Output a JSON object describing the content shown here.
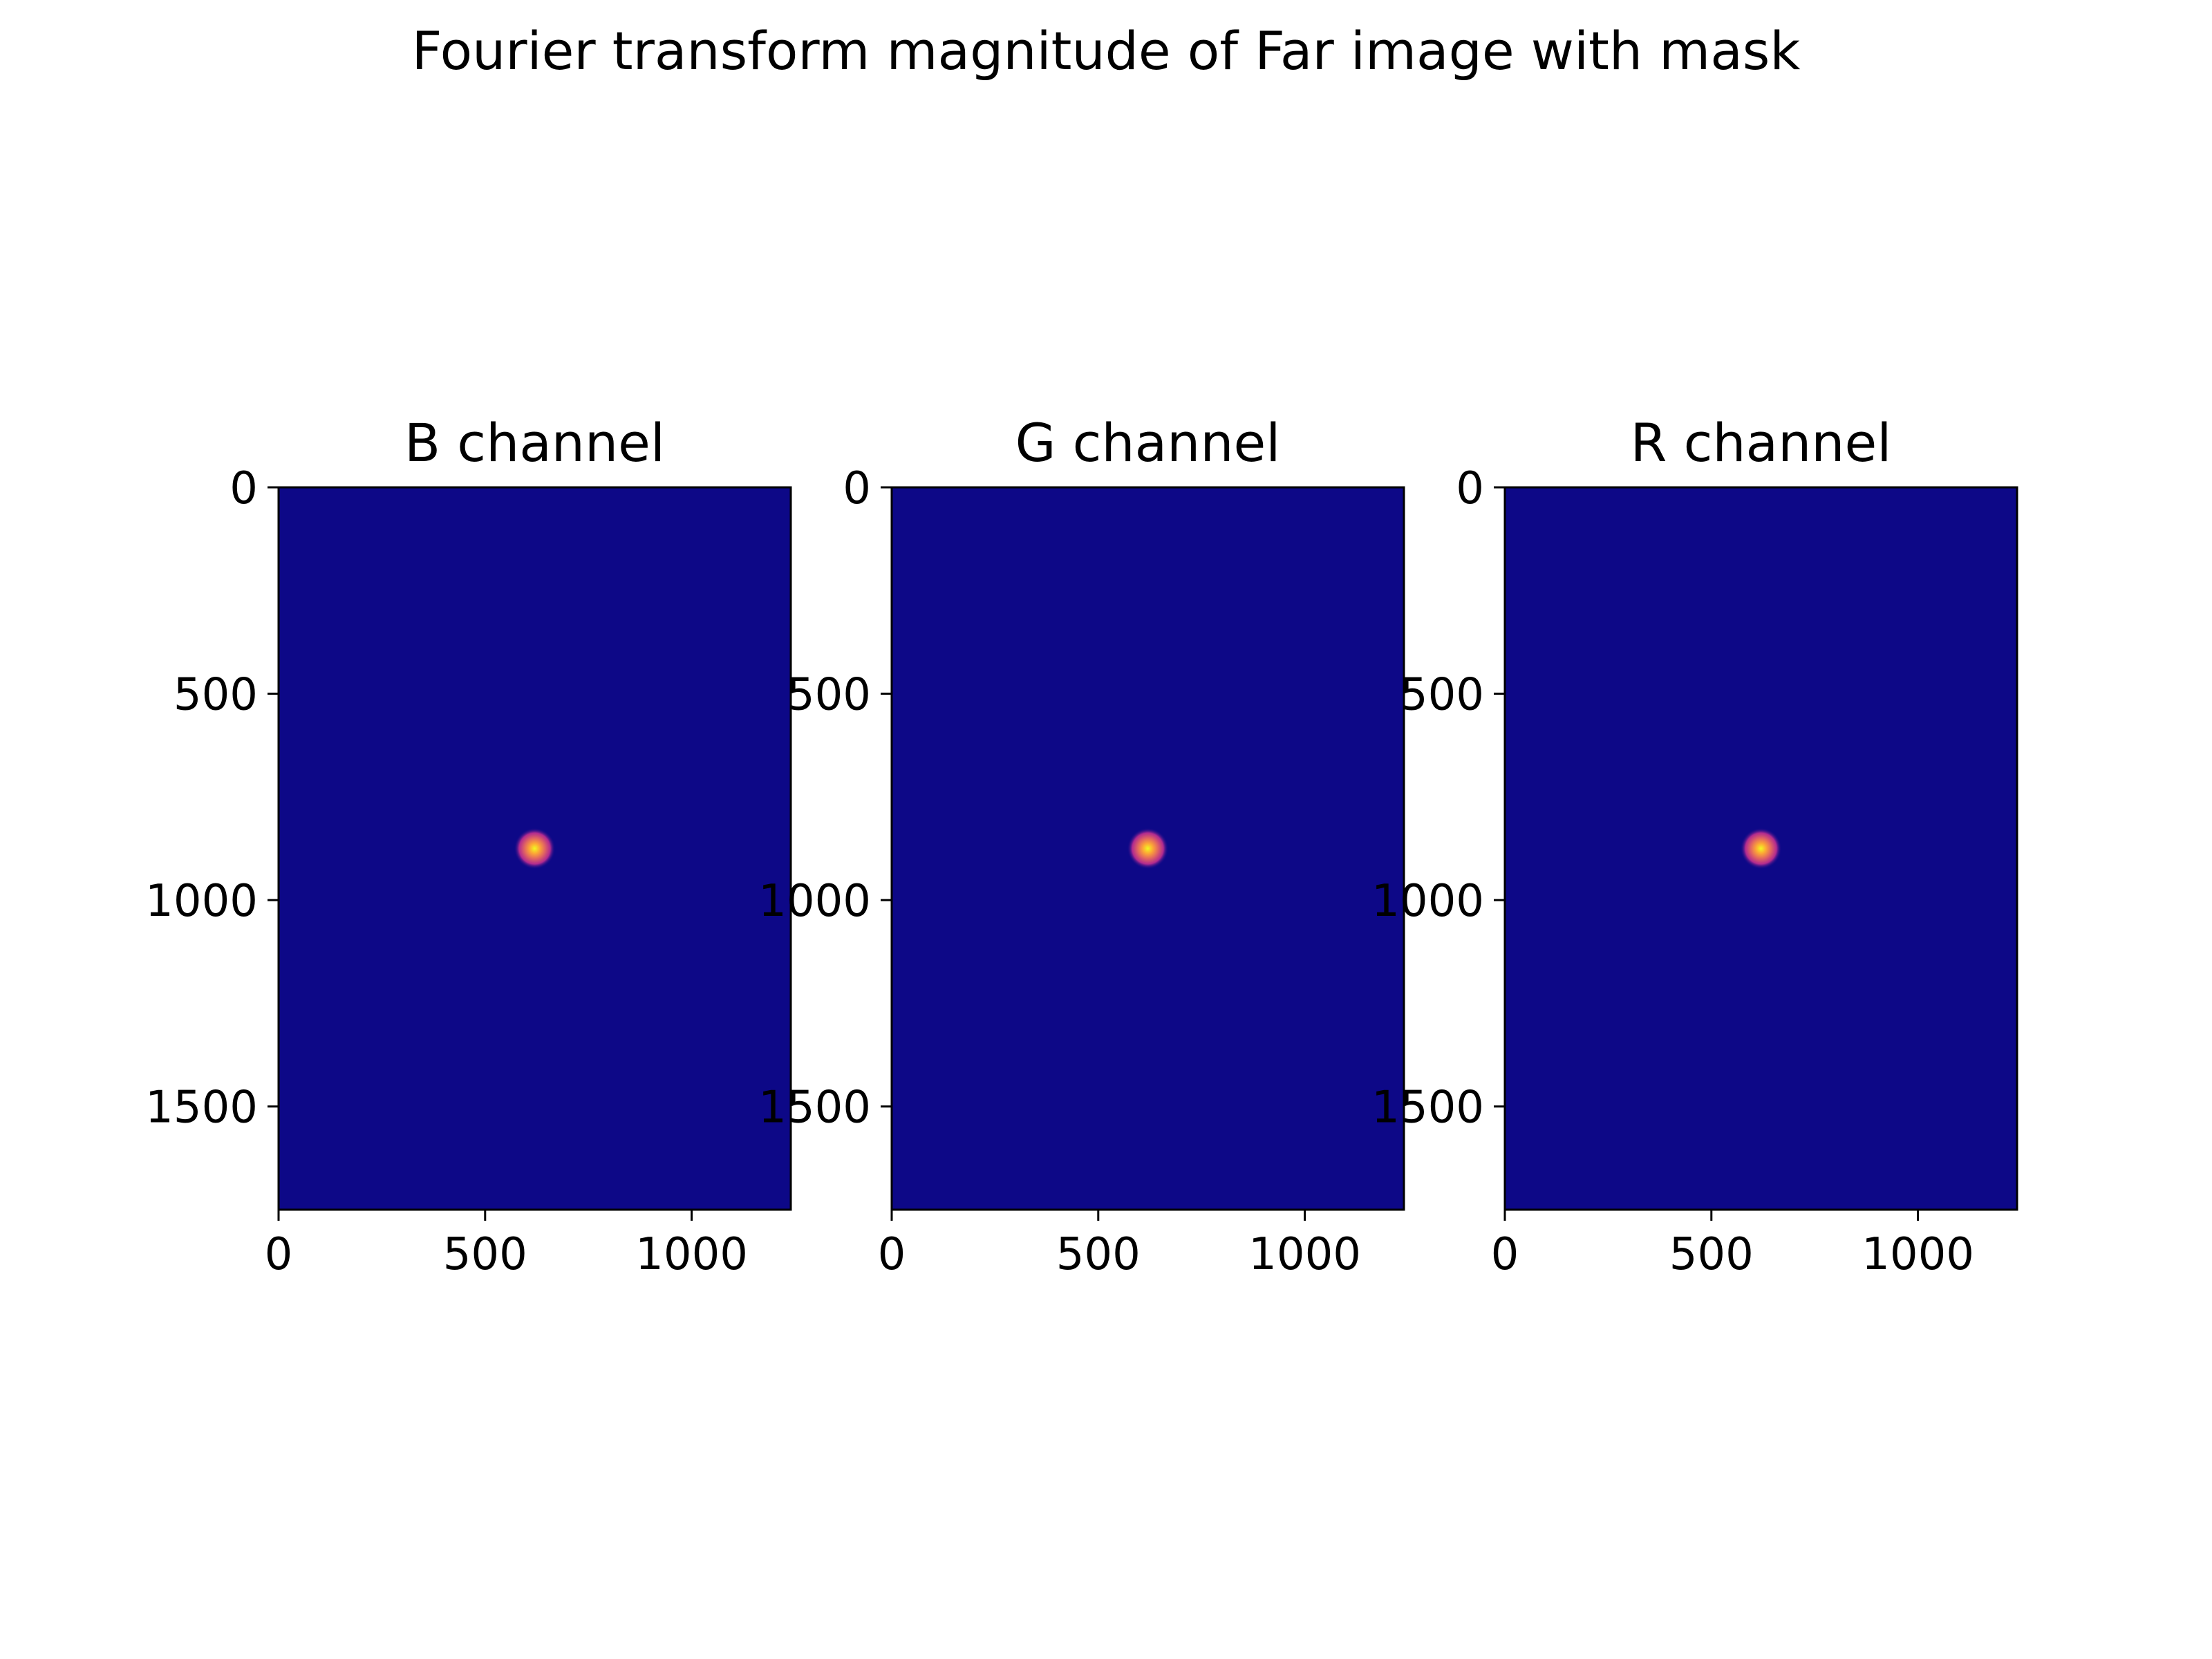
{
  "figure": {
    "suptitle": "Fourier transform magnitude of Far image with mask"
  },
  "chart_data": [
    {
      "type": "heatmap",
      "title": "B channel",
      "xlim": [
        0,
        1240
      ],
      "ylim": [
        1750,
        0
      ],
      "xticks": [
        0,
        500,
        1000
      ],
      "yticks": [
        0,
        500,
        1000,
        1500
      ],
      "colormap": "plasma",
      "background_color": "#0d0887",
      "bright_spot": {
        "x": 620,
        "y": 875,
        "value": "max"
      }
    },
    {
      "type": "heatmap",
      "title": "G channel",
      "xlim": [
        0,
        1240
      ],
      "ylim": [
        1750,
        0
      ],
      "xticks": [
        0,
        500,
        1000
      ],
      "yticks": [
        0,
        500,
        1000,
        1500
      ],
      "colormap": "plasma",
      "background_color": "#0d0887",
      "bright_spot": {
        "x": 620,
        "y": 875,
        "value": "max"
      }
    },
    {
      "type": "heatmap",
      "title": "R channel",
      "xlim": [
        0,
        1240
      ],
      "ylim": [
        1750,
        0
      ],
      "xticks": [
        0,
        500,
        1000
      ],
      "yticks": [
        0,
        500,
        1000,
        1500
      ],
      "colormap": "plasma",
      "background_color": "#0d0887",
      "bright_spot": {
        "x": 620,
        "y": 875,
        "value": "max"
      }
    }
  ]
}
